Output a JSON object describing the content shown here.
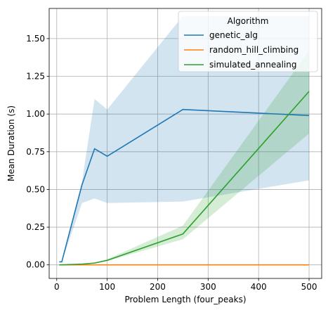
{
  "chart_data": {
    "type": "line",
    "xlabel": "Problem Length (four_peaks)",
    "ylabel": "Mean Duration (s)",
    "xlim": [
      -15,
      525
    ],
    "ylim": [
      -0.09,
      1.7
    ],
    "xticks": [
      0,
      100,
      200,
      300,
      400,
      500
    ],
    "yticks": [
      0.0,
      0.25,
      0.5,
      0.75,
      1.0,
      1.25,
      1.5
    ],
    "xtick_labels": [
      "0",
      "100",
      "200",
      "300",
      "400",
      "500"
    ],
    "ytick_labels": [
      "0.00",
      "0.25",
      "0.50",
      "0.75",
      "1.00",
      "1.25",
      "1.50"
    ],
    "grid": true,
    "legend": {
      "title": "Algorithm",
      "placement": "upper-right"
    },
    "series": [
      {
        "name": "genetic_alg",
        "color": "#1f77b4",
        "x": [
          5,
          10,
          50,
          75,
          100,
          250,
          500
        ],
        "values": [
          0.02,
          0.02,
          0.53,
          0.77,
          0.72,
          1.03,
          0.99
        ],
        "band_lower": [
          0.02,
          0.02,
          0.41,
          0.44,
          0.41,
          0.42,
          0.56
        ],
        "band_upper": [
          0.02,
          0.02,
          0.55,
          1.1,
          1.03,
          1.65,
          1.65
        ],
        "band_color": "#1f77b4"
      },
      {
        "name": "random_hill_climbing",
        "color": "#ff7f0e",
        "x": [
          5,
          10,
          50,
          75,
          100,
          250,
          500
        ],
        "values": [
          0.0,
          0.0,
          0.0,
          0.0,
          0.0,
          0.0,
          0.0
        ],
        "band_lower": [
          0.0,
          0.0,
          0.0,
          0.0,
          0.0,
          0.0,
          0.0
        ],
        "band_upper": [
          0.0,
          0.0,
          0.0,
          0.0,
          0.0,
          0.0,
          0.0
        ],
        "band_color": "#ff7f0e"
      },
      {
        "name": "simulated_annealing",
        "color": "#2ca02c",
        "x": [
          5,
          10,
          50,
          75,
          100,
          250,
          500
        ],
        "values": [
          0.0,
          0.0,
          0.005,
          0.012,
          0.03,
          0.205,
          1.15
        ],
        "band_lower": [
          0.0,
          0.0,
          0.003,
          0.009,
          0.025,
          0.17,
          0.87
        ],
        "band_upper": [
          0.0,
          0.0,
          0.008,
          0.016,
          0.037,
          0.26,
          1.42
        ],
        "band_color": "#2ca02c"
      }
    ]
  }
}
